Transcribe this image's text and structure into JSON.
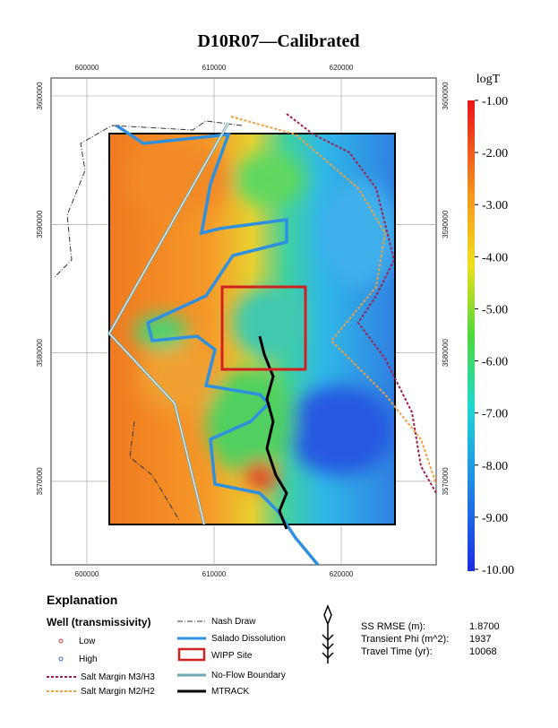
{
  "title": "D10R07—Calibrated",
  "map": {
    "xticks": [
      "600000",
      "610000",
      "620000"
    ],
    "yticks": [
      "3600000",
      "3590000",
      "3580000",
      "3570000"
    ]
  },
  "colorbar": {
    "label": "logT",
    "ticks": [
      "-1.00",
      "-2.00",
      "-3.00",
      "-4.00",
      "-5.00",
      "-6.00",
      "-7.00",
      "-8.00",
      "-9.00",
      "-10.00"
    ]
  },
  "legend": {
    "title": "Explanation",
    "well_heading": "Well (transmissivity)",
    "low": "Low",
    "high": "High",
    "salt_m3": "Salt Margin M3/H3",
    "salt_m2": "Salt Margin M2/H2",
    "nash": "Nash Draw",
    "salado": "Salado Dissolution",
    "wipp": "WIPP Site",
    "noflow": "No-Flow Boundary",
    "mtrack": "MTRACK"
  },
  "stats": [
    {
      "label": "SS RMSE (m):",
      "value": "1.8700"
    },
    {
      "label": "Transient Phi (m^2):",
      "value": "1937"
    },
    {
      "label": "Travel Time (yr):",
      "value": "10068"
    }
  ]
}
